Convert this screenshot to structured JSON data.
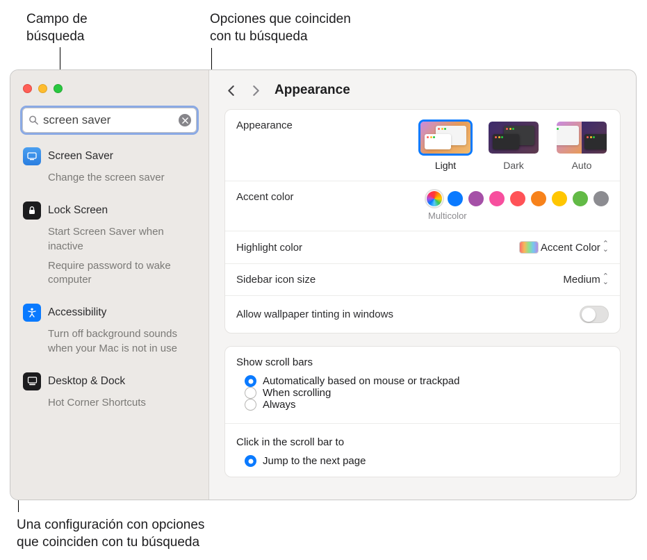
{
  "callouts": {
    "search_field": "Campo de\nbúsqueda",
    "matching_options": "Opciones que coinciden\ncon tu búsqueda",
    "matching_setting": "Una configuración con opciones\nque coinciden con tu búsqueda"
  },
  "sidebar": {
    "search_value": "screen saver",
    "results": [
      {
        "icon": "saver",
        "title": "Screen Saver",
        "subs": [
          "Change the screen saver"
        ]
      },
      {
        "icon": "lock",
        "title": "Lock Screen",
        "subs": [
          "Start Screen Saver when inactive",
          "Require password to wake computer"
        ]
      },
      {
        "icon": "acc",
        "title": "Accessibility",
        "subs": [
          "Turn off background sounds when your Mac is not in use"
        ]
      },
      {
        "icon": "desk",
        "title": "Desktop & Dock",
        "subs": [
          "Hot Corner Shortcuts"
        ]
      }
    ]
  },
  "main": {
    "title": "Appearance",
    "appearance": {
      "label": "Appearance",
      "options": [
        {
          "key": "light",
          "label": "Light",
          "selected": true
        },
        {
          "key": "dark",
          "label": "Dark",
          "selected": false
        },
        {
          "key": "auto",
          "label": "Auto",
          "selected": false
        }
      ]
    },
    "accent": {
      "label": "Accent color",
      "caption": "Multicolor",
      "swatches": [
        {
          "kind": "multi",
          "color": "",
          "selected": true
        },
        {
          "kind": "solid",
          "color": "#0a7aff",
          "selected": false
        },
        {
          "kind": "solid",
          "color": "#a550a7",
          "selected": false
        },
        {
          "kind": "solid",
          "color": "#f74f9e",
          "selected": false
        },
        {
          "kind": "solid",
          "color": "#ff5257",
          "selected": false
        },
        {
          "kind": "solid",
          "color": "#f7821b",
          "selected": false
        },
        {
          "kind": "solid",
          "color": "#ffc600",
          "selected": false
        },
        {
          "kind": "solid",
          "color": "#62ba46",
          "selected": false
        },
        {
          "kind": "solid",
          "color": "#8c8c91",
          "selected": false
        }
      ]
    },
    "highlight": {
      "label": "Highlight color",
      "value": "Accent Color"
    },
    "sidebar_size": {
      "label": "Sidebar icon size",
      "value": "Medium"
    },
    "tinting": {
      "label": "Allow wallpaper tinting in windows",
      "on": false
    },
    "scroll": {
      "label": "Show scroll bars",
      "options": [
        {
          "label": "Automatically based on mouse or trackpad",
          "selected": true
        },
        {
          "label": "When scrolling",
          "selected": false
        },
        {
          "label": "Always",
          "selected": false
        }
      ]
    },
    "click_scroll": {
      "label": "Click in the scroll bar to",
      "options": [
        {
          "label": "Jump to the next page",
          "selected": true
        }
      ]
    }
  }
}
